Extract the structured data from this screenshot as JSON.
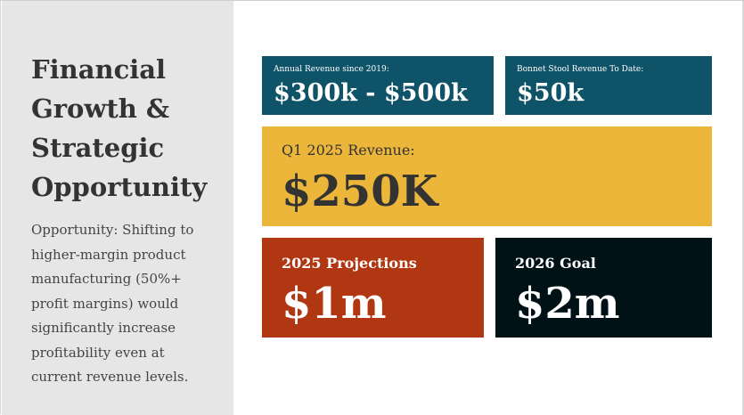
{
  "slide": {
    "title": "Financial\nGrowth &\nStrategic\nOpportunity",
    "body": "Opportunity: Shifting to\nhigher-margin product\nmanufacturing  (50%+\nprofit margins) would\nsignificantly increase\nprofitability even at\ncurrent revenue levels."
  },
  "cards": {
    "annual_revenue": {
      "label": "Annual Revenue since 2019:",
      "value": "$300k - $500k"
    },
    "bonnet_stool": {
      "label": "Bonnet Stool Revenue To Date:",
      "value": "$50k"
    },
    "q1_2025": {
      "label": "Q1 2025 Revenue:",
      "value": "$250K"
    },
    "projections_2025": {
      "label": "2025 Projections",
      "value": "$1m"
    },
    "goal_2026": {
      "label": "2026 Goal",
      "value": "$2m"
    }
  },
  "colors": {
    "sidebar": "#e6e6e6",
    "title": "#333333",
    "teal": "#0f5369",
    "gold": "#ecb63a",
    "rust": "#b13612",
    "dark": "#011216"
  }
}
